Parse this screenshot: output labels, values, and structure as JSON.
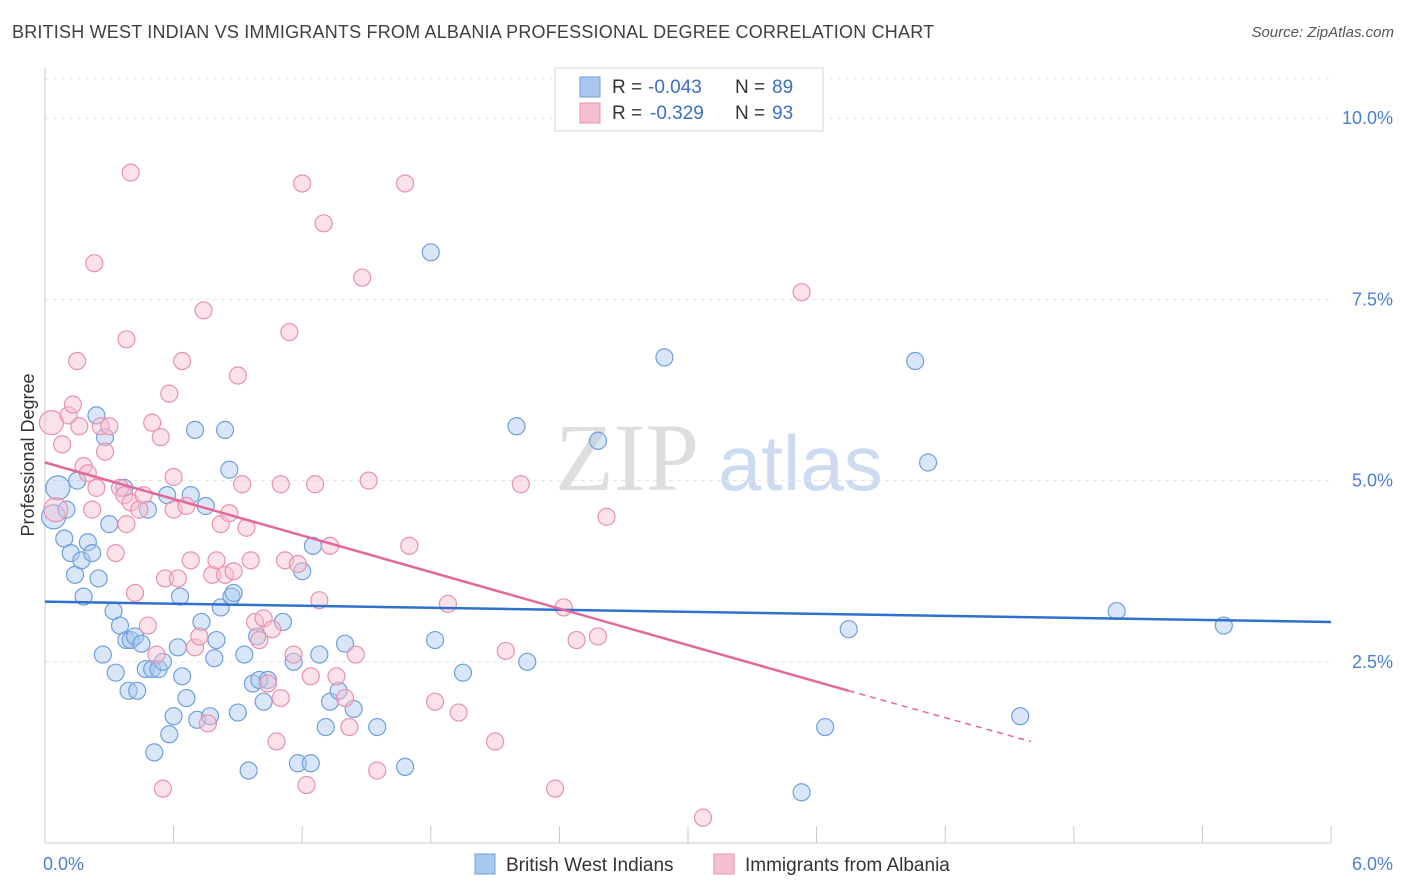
{
  "title": "BRITISH WEST INDIAN VS IMMIGRANTS FROM ALBANIA PROFESSIONAL DEGREE CORRELATION CHART",
  "source": "Source: ZipAtlas.com",
  "watermark": {
    "zip": "ZIP",
    "atlas": "atlas"
  },
  "colors": {
    "blue_fill": "#a9c7ef",
    "blue_stroke": "#6f9fdc",
    "blue_line": "#2f6fce",
    "pink_fill": "#f6bfd0",
    "pink_stroke": "#e891ae",
    "pink_line": "#e0699a",
    "tick_text": "#4a7fd0",
    "grid": "#e3e3e3"
  },
  "legend": {
    "rows": [
      {
        "r_label": "R =",
        "r_value": "-0.043",
        "n_label": "N =",
        "n_value": "89"
      },
      {
        "r_label": "R =",
        "r_value": "-0.329",
        "n_label": "N =",
        "n_value": "93"
      }
    ]
  },
  "chart_data": {
    "type": "scatter",
    "title": "BRITISH WEST INDIAN VS IMMIGRANTS FROM ALBANIA PROFESSIONAL DEGREE CORRELATION CHART",
    "xlabel": "",
    "ylabel": "Professional Degree",
    "xlim": [
      0,
      6
    ],
    "ylim": [
      0,
      10.5
    ],
    "x_tick_labels": [
      "0.0%",
      "6.0%"
    ],
    "y_ticks": [
      2.5,
      5.0,
      7.5,
      10.0
    ],
    "y_tick_labels": [
      "2.5%",
      "5.0%",
      "7.5%",
      "10.0%"
    ],
    "grid": "horizontal dashed",
    "legend_position": "top-center",
    "series": [
      {
        "name": "British West Indians",
        "color": "#a9c7ef",
        "trend": {
          "x": [
            0,
            6
          ],
          "y": [
            3.33,
            3.05
          ]
        },
        "points": [
          [
            0.04,
            4.5
          ],
          [
            0.06,
            4.9
          ],
          [
            0.09,
            4.2
          ],
          [
            0.1,
            4.6
          ],
          [
            0.12,
            4.0
          ],
          [
            0.14,
            3.7
          ],
          [
            0.15,
            5.0
          ],
          [
            0.17,
            3.9
          ],
          [
            0.18,
            3.4
          ],
          [
            0.2,
            4.15
          ],
          [
            0.22,
            4.0
          ],
          [
            0.24,
            5.9
          ],
          [
            0.25,
            3.65
          ],
          [
            0.27,
            2.6
          ],
          [
            0.28,
            5.6
          ],
          [
            0.3,
            4.4
          ],
          [
            0.32,
            3.2
          ],
          [
            0.33,
            2.35
          ],
          [
            0.35,
            3.0
          ],
          [
            0.37,
            4.9
          ],
          [
            0.38,
            2.8
          ],
          [
            0.39,
            2.1
          ],
          [
            0.4,
            2.8
          ],
          [
            0.42,
            2.85
          ],
          [
            0.43,
            2.1
          ],
          [
            0.45,
            2.75
          ],
          [
            0.47,
            2.4
          ],
          [
            0.48,
            4.6
          ],
          [
            0.5,
            2.4
          ],
          [
            0.51,
            1.25
          ],
          [
            0.53,
            2.4
          ],
          [
            0.55,
            2.5
          ],
          [
            0.57,
            4.8
          ],
          [
            0.58,
            1.5
          ],
          [
            0.6,
            1.75
          ],
          [
            0.62,
            2.7
          ],
          [
            0.63,
            3.4
          ],
          [
            0.64,
            2.3
          ],
          [
            0.66,
            2.0
          ],
          [
            0.68,
            4.8
          ],
          [
            0.7,
            5.7
          ],
          [
            0.71,
            1.7
          ],
          [
            0.73,
            3.05
          ],
          [
            0.75,
            4.65
          ],
          [
            0.77,
            1.75
          ],
          [
            0.79,
            2.55
          ],
          [
            0.8,
            2.8
          ],
          [
            0.82,
            3.25
          ],
          [
            0.84,
            5.7
          ],
          [
            0.86,
            5.15
          ],
          [
            0.87,
            3.4
          ],
          [
            0.88,
            3.45
          ],
          [
            0.9,
            1.8
          ],
          [
            0.93,
            2.6
          ],
          [
            0.95,
            1.0
          ],
          [
            0.97,
            2.2
          ],
          [
            0.99,
            2.85
          ],
          [
            1.0,
            2.25
          ],
          [
            1.02,
            1.95
          ],
          [
            1.04,
            2.25
          ],
          [
            1.11,
            3.05
          ],
          [
            1.16,
            2.5
          ],
          [
            1.18,
            1.1
          ],
          [
            1.2,
            3.75
          ],
          [
            1.24,
            1.1
          ],
          [
            1.25,
            4.1
          ],
          [
            1.28,
            2.6
          ],
          [
            1.31,
            1.6
          ],
          [
            1.33,
            1.95
          ],
          [
            1.37,
            2.1
          ],
          [
            1.4,
            2.75
          ],
          [
            1.44,
            1.85
          ],
          [
            1.55,
            1.6
          ],
          [
            1.68,
            1.05
          ],
          [
            1.8,
            8.15
          ],
          [
            1.82,
            2.8
          ],
          [
            1.95,
            2.35
          ],
          [
            2.2,
            5.75
          ],
          [
            2.25,
            2.5
          ],
          [
            2.58,
            5.55
          ],
          [
            2.89,
            6.7
          ],
          [
            3.53,
            0.7
          ],
          [
            3.64,
            1.6
          ],
          [
            3.75,
            2.95
          ],
          [
            4.06,
            6.65
          ],
          [
            4.12,
            5.25
          ],
          [
            4.55,
            1.75
          ],
          [
            5.0,
            3.2
          ],
          [
            5.5,
            3.0
          ]
        ]
      },
      {
        "name": "Immigrants from Albania",
        "color": "#f6bfd0",
        "trend": {
          "x": [
            0,
            3.75
          ],
          "y": [
            5.25,
            2.1
          ]
        },
        "trend_dashed": {
          "x": [
            3.75,
            4.6
          ],
          "y": [
            2.1,
            1.4
          ]
        },
        "points": [
          [
            0.03,
            5.8
          ],
          [
            0.05,
            4.6
          ],
          [
            0.08,
            5.5
          ],
          [
            0.11,
            5.9
          ],
          [
            0.13,
            6.05
          ],
          [
            0.16,
            5.75
          ],
          [
            0.18,
            5.2
          ],
          [
            0.2,
            5.1
          ],
          [
            0.22,
            4.6
          ],
          [
            0.24,
            4.9
          ],
          [
            0.26,
            5.75
          ],
          [
            0.28,
            5.4
          ],
          [
            0.3,
            5.75
          ],
          [
            0.33,
            4.0
          ],
          [
            0.35,
            4.9
          ],
          [
            0.37,
            4.8
          ],
          [
            0.38,
            4.4
          ],
          [
            0.4,
            4.7
          ],
          [
            0.42,
            3.45
          ],
          [
            0.44,
            4.6
          ],
          [
            0.46,
            4.8
          ],
          [
            0.48,
            3.0
          ],
          [
            0.5,
            5.8
          ],
          [
            0.52,
            2.6
          ],
          [
            0.54,
            5.6
          ],
          [
            0.56,
            3.65
          ],
          [
            0.58,
            6.2
          ],
          [
            0.6,
            4.6
          ],
          [
            0.62,
            3.65
          ],
          [
            0.64,
            6.65
          ],
          [
            0.66,
            4.65
          ],
          [
            0.68,
            3.9
          ],
          [
            0.7,
            2.7
          ],
          [
            0.72,
            2.85
          ],
          [
            0.74,
            7.35
          ],
          [
            0.76,
            1.65
          ],
          [
            0.78,
            3.7
          ],
          [
            0.8,
            3.9
          ],
          [
            0.82,
            4.4
          ],
          [
            0.84,
            3.7
          ],
          [
            0.86,
            4.55
          ],
          [
            0.88,
            3.75
          ],
          [
            0.9,
            6.45
          ],
          [
            0.92,
            4.95
          ],
          [
            0.94,
            4.35
          ],
          [
            0.96,
            3.9
          ],
          [
            0.98,
            3.05
          ],
          [
            1.0,
            2.8
          ],
          [
            1.02,
            3.1
          ],
          [
            1.04,
            2.2
          ],
          [
            1.06,
            2.95
          ],
          [
            1.08,
            1.4
          ],
          [
            1.1,
            2.0
          ],
          [
            1.12,
            3.9
          ],
          [
            1.14,
            7.05
          ],
          [
            1.16,
            2.6
          ],
          [
            1.18,
            3.85
          ],
          [
            1.2,
            9.1
          ],
          [
            1.22,
            0.8
          ],
          [
            1.24,
            2.3
          ],
          [
            1.26,
            4.95
          ],
          [
            1.28,
            3.35
          ],
          [
            1.3,
            8.55
          ],
          [
            1.33,
            4.1
          ],
          [
            1.36,
            2.3
          ],
          [
            1.4,
            2.0
          ],
          [
            1.42,
            1.6
          ],
          [
            1.45,
            2.6
          ],
          [
            1.48,
            7.8
          ],
          [
            1.51,
            5.0
          ],
          [
            1.55,
            1.0
          ],
          [
            1.68,
            9.1
          ],
          [
            1.82,
            1.95
          ],
          [
            1.88,
            3.3
          ],
          [
            1.93,
            1.8
          ],
          [
            2.1,
            1.4
          ],
          [
            2.15,
            2.65
          ],
          [
            2.22,
            4.95
          ],
          [
            2.38,
            0.75
          ],
          [
            2.42,
            3.25
          ],
          [
            2.48,
            2.8
          ],
          [
            2.62,
            4.5
          ],
          [
            3.07,
            0.35
          ],
          [
            3.53,
            7.6
          ],
          [
            0.4,
            9.25
          ],
          [
            0.15,
            6.65
          ],
          [
            0.38,
            6.95
          ],
          [
            0.23,
            8.0
          ],
          [
            1.1,
            4.95
          ],
          [
            0.55,
            0.75
          ],
          [
            2.58,
            2.85
          ],
          [
            0.6,
            5.05
          ],
          [
            1.7,
            4.1
          ]
        ]
      }
    ]
  }
}
